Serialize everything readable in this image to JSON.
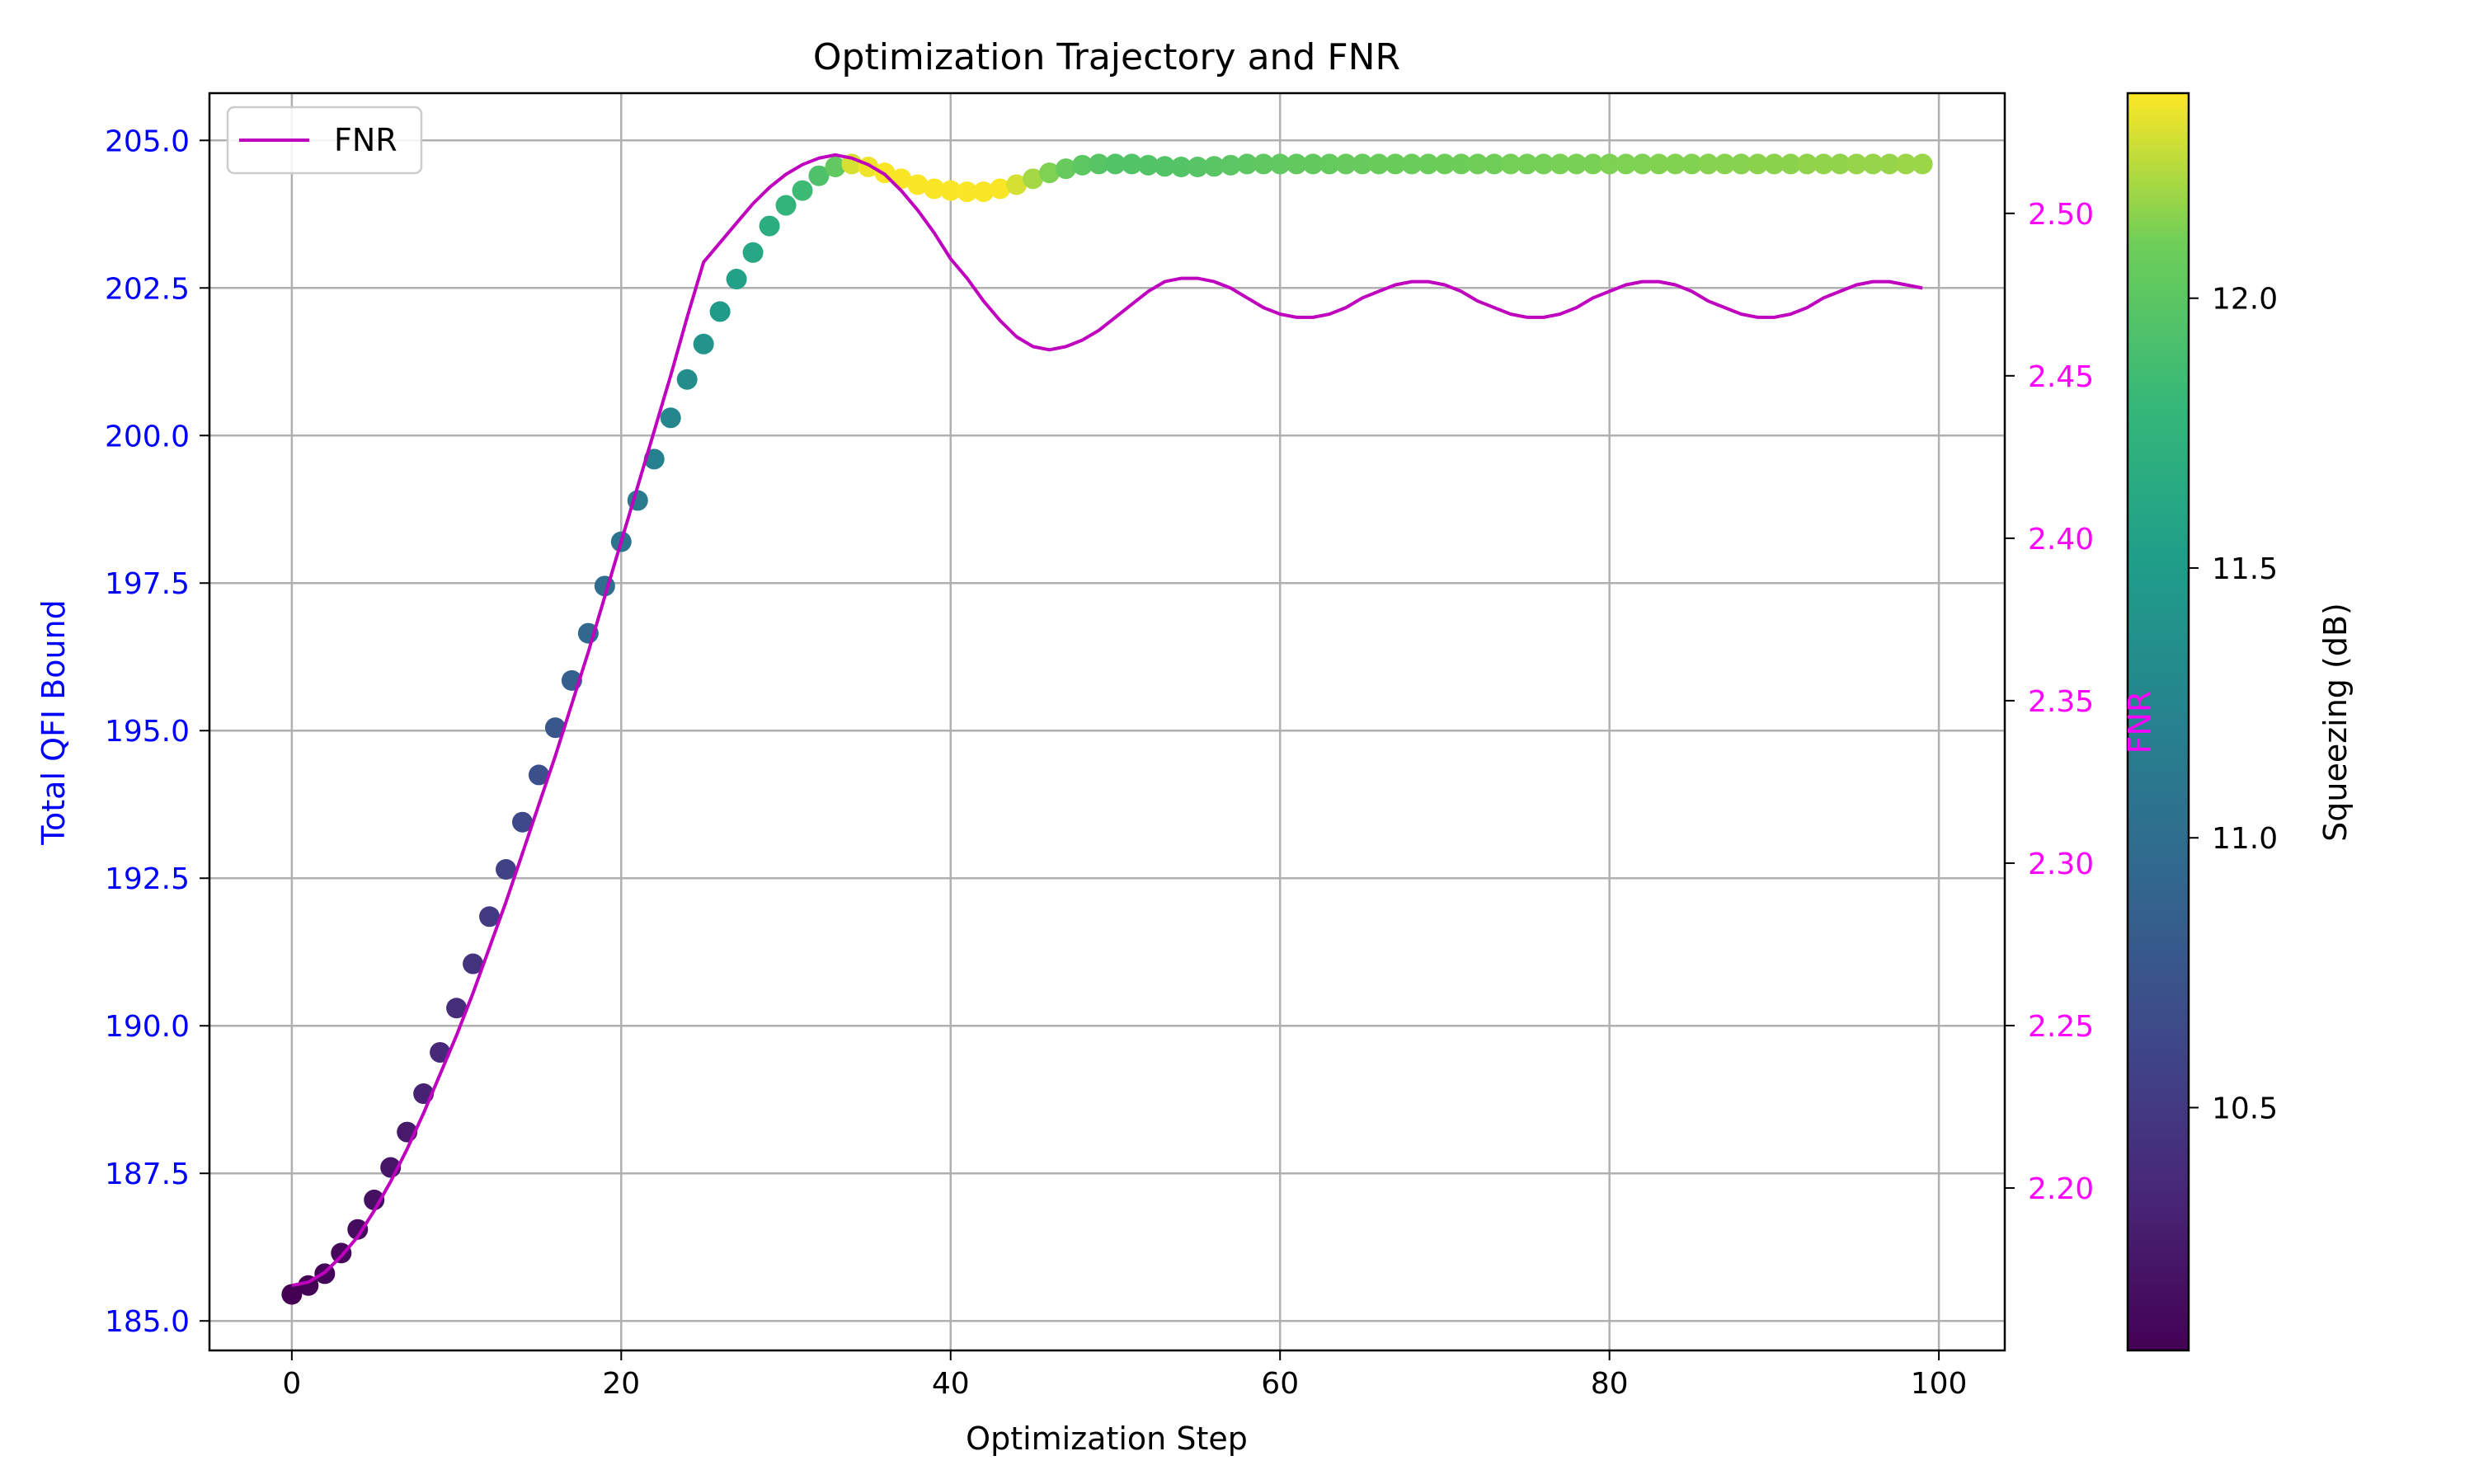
{
  "chart_data": {
    "type": "scatter",
    "title": "Optimization Trajectory and FNR",
    "xlabel": "Optimization Step",
    "ylabel": "Total QFI Bound",
    "y2label": "FNR",
    "colorbar_label": "Squeezing (dB)",
    "xlim": [
      -5,
      104
    ],
    "ylim": [
      184.5,
      205.8
    ],
    "y2lim": [
      2.15,
      2.537
    ],
    "clim": [
      10.05,
      12.38
    ],
    "xticks": [
      0,
      20,
      40,
      60,
      80,
      100
    ],
    "yticks": [
      185.0,
      187.5,
      190.0,
      192.5,
      195.0,
      197.5,
      200.0,
      202.5,
      205.0
    ],
    "y2ticks": [
      2.2,
      2.25,
      2.3,
      2.35,
      2.4,
      2.45,
      2.5
    ],
    "cticks": [
      10.5,
      11.0,
      11.5,
      12.0
    ],
    "grid": true,
    "legend_position": "top-left",
    "legend": [
      "FNR"
    ],
    "colors": {
      "left_axis": "#0000ff",
      "right_axis": "#ff00ff",
      "fnr_line": "#bf00bf",
      "colormap": "viridis"
    },
    "qfi": [
      185.45,
      185.6,
      185.8,
      186.15,
      186.55,
      187.05,
      187.6,
      188.2,
      188.85,
      189.55,
      190.3,
      191.05,
      191.85,
      192.65,
      193.45,
      194.25,
      195.05,
      195.85,
      196.65,
      197.45,
      198.2,
      198.9,
      199.6,
      200.3,
      200.95,
      201.55,
      202.1,
      202.65,
      203.1,
      203.55,
      203.9,
      204.15,
      204.4,
      204.55,
      204.6,
      204.55,
      204.45,
      204.35,
      204.25,
      204.18,
      204.15,
      204.13,
      204.13,
      204.18,
      204.25,
      204.35,
      204.45,
      204.52,
      204.58,
      204.6,
      204.6,
      204.6,
      204.58,
      204.56,
      204.55,
      204.55,
      204.56,
      204.58,
      204.6,
      204.6,
      204.6,
      204.6,
      204.6,
      204.6,
      204.6,
      204.6,
      204.6,
      204.6,
      204.6,
      204.6,
      204.6,
      204.6,
      204.6,
      204.6,
      204.6,
      204.6,
      204.6,
      204.6,
      204.6,
      204.6,
      204.6,
      204.6,
      204.6,
      204.6,
      204.6,
      204.6,
      204.6,
      204.6,
      204.6,
      204.6,
      204.6,
      204.6,
      204.6,
      204.6,
      204.6,
      204.6,
      204.6,
      204.6,
      204.6,
      204.6
    ],
    "squeezing": [
      10.05,
      10.06,
      10.08,
      10.1,
      10.13,
      10.16,
      10.2,
      10.24,
      10.29,
      10.34,
      10.39,
      10.45,
      10.51,
      10.57,
      10.63,
      10.7,
      10.77,
      10.84,
      10.91,
      10.98,
      11.05,
      11.12,
      11.19,
      11.26,
      11.33,
      11.4,
      11.47,
      11.54,
      11.61,
      11.68,
      11.76,
      11.84,
      11.93,
      12.02,
      12.3,
      12.35,
      12.37,
      12.37,
      12.37,
      12.37,
      12.37,
      12.37,
      12.37,
      12.37,
      12.3,
      12.2,
      12.12,
      12.05,
      12.0,
      11.97,
      11.95,
      11.95,
      11.95,
      11.95,
      11.96,
      11.97,
      11.98,
      11.99,
      12.0,
      12.01,
      12.02,
      12.03,
      12.03,
      12.04,
      12.05,
      12.05,
      12.06,
      12.06,
      12.07,
      12.07,
      12.08,
      12.08,
      12.09,
      12.09,
      12.1,
      12.1,
      12.1,
      12.11,
      12.11,
      12.11,
      12.12,
      12.12,
      12.12,
      12.13,
      12.13,
      12.13,
      12.14,
      12.14,
      12.14,
      12.15,
      12.15,
      12.15,
      12.16,
      12.16,
      12.16,
      12.17,
      12.17,
      12.17,
      12.18,
      12.18
    ],
    "fnr": [
      2.17,
      2.171,
      2.174,
      2.179,
      2.185,
      2.193,
      2.202,
      2.212,
      2.223,
      2.235,
      2.247,
      2.26,
      2.274,
      2.288,
      2.303,
      2.318,
      2.333,
      2.349,
      2.365,
      2.382,
      2.399,
      2.416,
      2.433,
      2.45,
      2.468,
      2.485,
      2.491,
      2.497,
      2.503,
      2.508,
      2.512,
      2.515,
      2.517,
      2.518,
      2.517,
      2.515,
      2.512,
      2.507,
      2.501,
      2.494,
      2.486,
      2.48,
      2.473,
      2.467,
      2.462,
      2.459,
      2.458,
      2.459,
      2.461,
      2.464,
      2.468,
      2.472,
      2.476,
      2.479,
      2.48,
      2.48,
      2.479,
      2.477,
      2.474,
      2.471,
      2.469,
      2.468,
      2.468,
      2.469,
      2.471,
      2.474,
      2.476,
      2.478,
      2.479,
      2.479,
      2.478,
      2.476,
      2.473,
      2.471,
      2.469,
      2.468,
      2.468,
      2.469,
      2.471,
      2.474,
      2.476,
      2.478,
      2.479,
      2.479,
      2.478,
      2.476,
      2.473,
      2.471,
      2.469,
      2.468,
      2.468,
      2.469,
      2.471,
      2.474,
      2.476,
      2.478,
      2.479,
      2.479,
      2.478,
      2.477
    ]
  }
}
